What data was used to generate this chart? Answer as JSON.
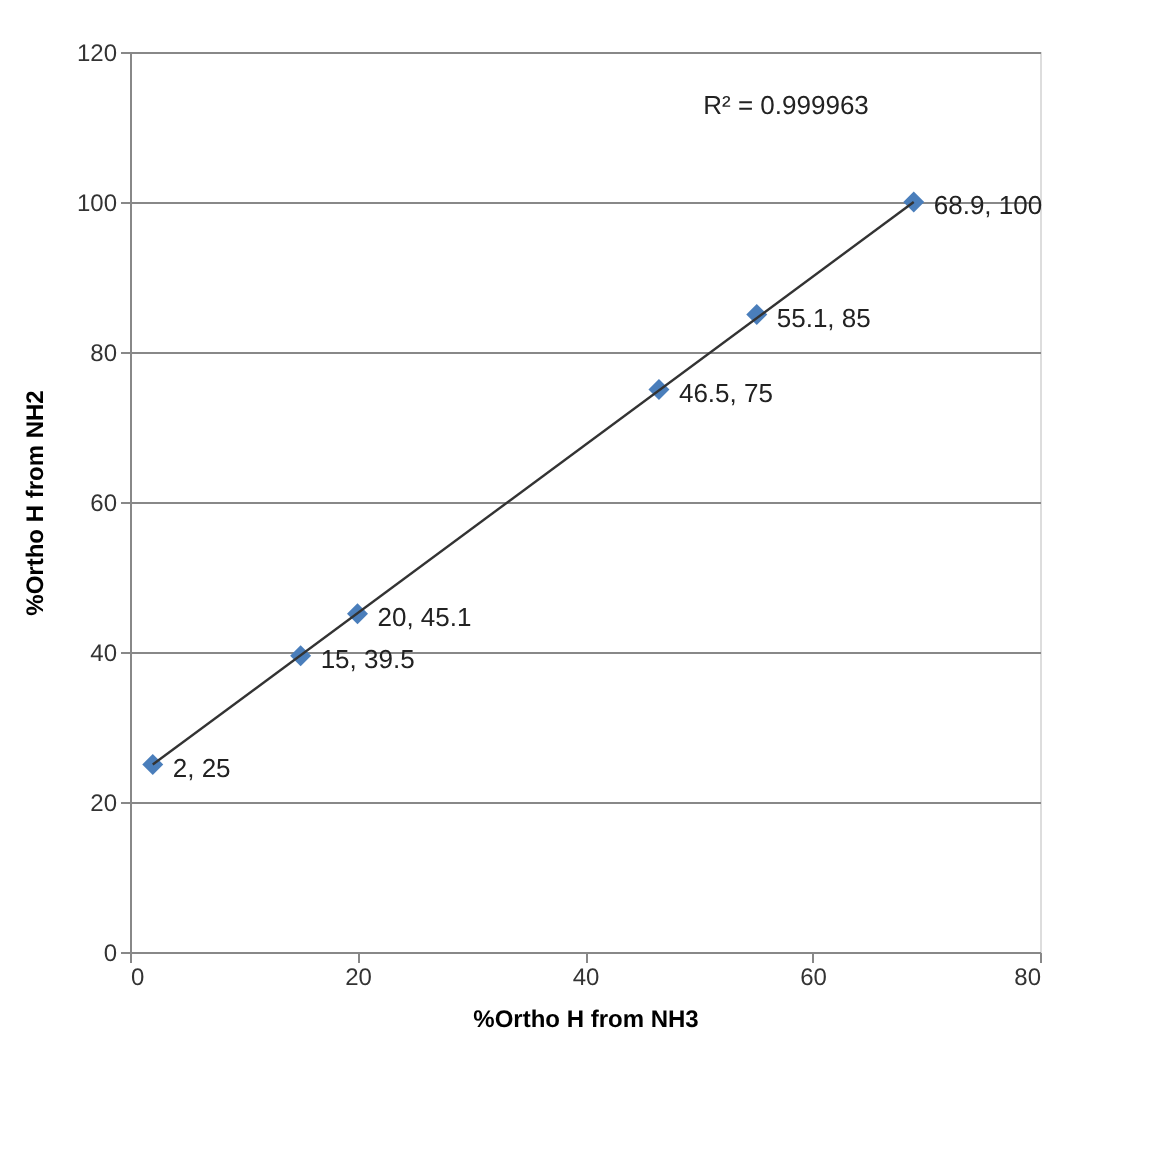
{
  "chart_data": {
    "type": "scatter",
    "xlabel": "%Ortho H from NH3",
    "ylabel": "%Ortho H from NH2",
    "xlim": [
      0,
      80
    ],
    "xticks": [
      0,
      20,
      40,
      60,
      80
    ],
    "ylim": [
      0,
      120
    ],
    "yticks": [
      0,
      20,
      40,
      60,
      80,
      100,
      120
    ],
    "grid": "y",
    "marker": "diamond",
    "annotations": [
      "R² = 0.999963"
    ],
    "series": [
      {
        "color": "#4a7ebb",
        "x": [
          2,
          15,
          20,
          46.5,
          55.1,
          68.9
        ],
        "values": [
          25,
          39.5,
          45.1,
          75,
          85,
          100
        ],
        "value_labels": [
          "2, 25",
          "15, 39.5",
          "20, 45.1",
          "46.5, 75",
          "55.1, 85",
          "68.9, 100"
        ]
      },
      {
        "type": "line",
        "color": "#333333",
        "marker": "none",
        "x": [
          2,
          68.9
        ],
        "values": [
          25,
          100
        ]
      }
    ]
  }
}
